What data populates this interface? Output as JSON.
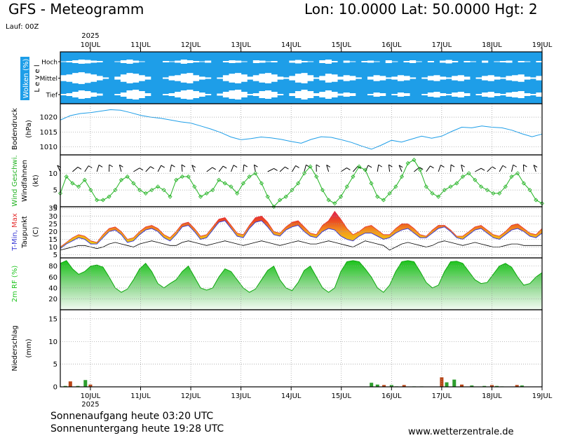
{
  "header": {
    "title": "GFS - Meteogramm",
    "coords": "Lon: 10.0000 Lat: 50.0000 Hgt: 2",
    "run": "Lauf: 00Z"
  },
  "footer": {
    "sunrise": "Sonnenaufgang heute 03:20 UTC",
    "sunset": "Sonnenuntergang heute 19:28 UTC",
    "site": "www.wetterzentrale.de"
  },
  "colors": {
    "cloud": "#1e9ee8",
    "pressure": "#1e9ee8",
    "wind": "#22b322",
    "tmin": "#3a3ad6",
    "tmax": "#e53030",
    "rh": "#1fc41f",
    "precip_conv": "#2e9e2e",
    "precip_large": "#b84414"
  },
  "chart_data": {
    "type": "line",
    "year_label": "2025",
    "x_ticks": [
      "10JUL",
      "11JUL",
      "12JUL",
      "13JUL",
      "14JUL",
      "15JUL",
      "16JUL",
      "17JUL",
      "18JUL",
      "19JUL"
    ],
    "x_range_days": [
      9.4,
      19.0
    ],
    "panels": [
      {
        "id": "clouds",
        "ylabel": "Wolken (%)",
        "ylabel2": "L e v e l",
        "levels": [
          "Hoch",
          "Mittel",
          "Tief"
        ],
        "series": [
          {
            "name": "Hoch",
            "values": [
              95,
              90,
              80,
              70,
              75,
              85,
              90,
              100,
              100,
              95,
              80,
              70,
              85,
              95,
              100,
              100,
              100,
              90,
              95,
              85,
              70,
              80,
              90,
              95,
              85,
              100,
              100,
              90,
              80,
              85,
              95,
              100,
              80,
              85,
              95,
              90,
              100,
              100,
              85,
              75,
              90,
              95,
              100,
              80,
              70,
              90,
              100,
              85,
              95,
              100,
              90,
              85,
              95,
              100,
              80,
              95,
              100,
              90,
              80,
              95,
              100,
              90,
              100,
              85,
              75,
              90,
              100,
              90,
              95,
              100,
              85,
              100,
              95,
              90,
              85,
              100,
              90,
              95,
              100,
              90
            ]
          },
          {
            "name": "Mittel",
            "values": [
              60,
              50,
              30,
              20,
              35,
              50,
              70,
              90,
              100,
              80,
              50,
              30,
              40,
              60,
              80,
              100,
              100,
              90,
              70,
              60,
              40,
              30,
              60,
              80,
              90,
              100,
              90,
              60,
              40,
              30,
              50,
              80,
              60,
              40,
              30,
              50,
              80,
              90,
              70,
              40,
              30,
              60,
              90,
              70,
              40,
              50,
              80,
              60,
              70,
              90,
              100,
              80,
              60,
              70,
              90,
              80,
              60,
              70,
              90,
              100,
              90,
              70,
              60,
              80,
              90,
              70,
              60,
              80,
              100,
              90,
              70,
              60,
              80,
              90,
              70,
              60,
              50,
              80,
              90,
              70
            ]
          },
          {
            "name": "Tief",
            "values": [
              90,
              80,
              60,
              40,
              50,
              70,
              85,
              100,
              100,
              90,
              70,
              40,
              30,
              50,
              80,
              100,
              100,
              90,
              80,
              60,
              40,
              30,
              50,
              70,
              90,
              100,
              85,
              60,
              40,
              30,
              60,
              90,
              80,
              50,
              40,
              60,
              90,
              100,
              80,
              50,
              30,
              50,
              80,
              60,
              40,
              60,
              85,
              70,
              80,
              100,
              100,
              90,
              70,
              80,
              100,
              90,
              70,
              80,
              100,
              100,
              90,
              70,
              60,
              80,
              90,
              70,
              60,
              80,
              100,
              90,
              70,
              60,
              80,
              90,
              70,
              60,
              50,
              80,
              90,
              70
            ]
          }
        ]
      },
      {
        "id": "pressure",
        "ylabel": "Bodendruck",
        "ylabel2": "(hPa)",
        "yticks": [
          1010,
          1015,
          1020
        ],
        "ylim": [
          1007.3,
          1024.5
        ],
        "series": [
          {
            "name": "Bodendruck",
            "x": [
              9.4,
              9.6,
              9.8,
              10.0,
              10.2,
              10.4,
              10.6,
              10.8,
              11.0,
              11.2,
              11.4,
              11.6,
              11.8,
              12.0,
              12.2,
              12.4,
              12.6,
              12.8,
              13.0,
              13.2,
              13.4,
              13.6,
              13.8,
              14.0,
              14.2,
              14.4,
              14.6,
              14.8,
              15.0,
              15.2,
              15.4,
              15.6,
              15.8,
              16.0,
              16.2,
              16.4,
              16.6,
              16.8,
              17.0,
              17.2,
              17.4,
              17.6,
              17.8,
              18.0,
              18.2,
              18.4,
              18.6,
              18.8,
              19.0
            ],
            "values": [
              1019.0,
              1020.5,
              1021.2,
              1021.5,
              1022.0,
              1022.5,
              1022.3,
              1021.5,
              1020.6,
              1020.0,
              1019.6,
              1019.0,
              1018.4,
              1018.0,
              1017.0,
              1016.0,
              1014.8,
              1013.3,
              1012.4,
              1012.8,
              1013.3,
              1013.0,
              1012.5,
              1011.8,
              1011.2,
              1012.5,
              1013.4,
              1013.2,
              1012.4,
              1011.5,
              1010.3,
              1009.2,
              1010.6,
              1012.2,
              1011.6,
              1012.6,
              1013.6,
              1012.9,
              1013.6,
              1015.2,
              1016.6,
              1016.4,
              1017.0,
              1016.6,
              1016.4,
              1015.6,
              1014.4,
              1013.4,
              1014.3
            ]
          }
        ]
      },
      {
        "id": "wind",
        "ylabel": "Wind Geschwi.",
        "ylabel2": "Windfahnen",
        "ylabel3": "(kt)",
        "yticks": [
          0,
          5,
          10
        ],
        "ylim": [
          0,
          15.5
        ],
        "series": [
          {
            "name": "Wind Geschwi.",
            "values": [
              4,
              9,
              7,
              6,
              8,
              5,
              2,
              2,
              3,
              5,
              8,
              9,
              7,
              5,
              4,
              5,
              6,
              5,
              3,
              8,
              9,
              9,
              6,
              3,
              4,
              5,
              8,
              7,
              6,
              4,
              7,
              9,
              10,
              7,
              3,
              0,
              2,
              3,
              5,
              7,
              10,
              12,
              9,
              5,
              2,
              1,
              3,
              6,
              9,
              12,
              11,
              7,
              3,
              2,
              4,
              6,
              9,
              13,
              14,
              11,
              6,
              4,
              3,
              5,
              6,
              7,
              9,
              10,
              8,
              6,
              5,
              4,
              4,
              6,
              9,
              10,
              7,
              5,
              2,
              1
            ]
          }
        ]
      },
      {
        "id": "temperature",
        "ylabel": "T-Min, Max",
        "ylabel2": "Taupunkt",
        "ylabel3": "(C)",
        "yticks": [
          5,
          10,
          15,
          20,
          25,
          30,
          35
        ],
        "ylim": [
          3,
          36
        ],
        "series": [
          {
            "name": "T-Min",
            "values": [
              9,
              12,
              14,
              16,
              15,
              12,
              12,
              16,
              20,
              21,
              18,
              13,
              14,
              18,
              21,
              22,
              20,
              16,
              14,
              18,
              23,
              24,
              20,
              15,
              16,
              21,
              26,
              27,
              22,
              17,
              16,
              22,
              26,
              27,
              23,
              18,
              17,
              21,
              23,
              24,
              20,
              17,
              16,
              20,
              22,
              21,
              17,
              15,
              14,
              17,
              19,
              19,
              17,
              15,
              16,
              19,
              21,
              22,
              19,
              16,
              16,
              19,
              22,
              23,
              20,
              16,
              15,
              18,
              21,
              22,
              19,
              16,
              15,
              18,
              21,
              22,
              20,
              17,
              16,
              19
            ]
          },
          {
            "name": "T-Max",
            "values": [
              10,
              13,
              16,
              18,
              17,
              14,
              13,
              18,
              22,
              23,
              20,
              15,
              16,
              20,
              23,
              24,
              22,
              18,
              16,
              20,
              25,
              26,
              22,
              17,
              18,
              23,
              28,
              29,
              24,
              19,
              18,
              24,
              29,
              30,
              26,
              20,
              19,
              23,
              26,
              27,
              23,
              19,
              18,
              24,
              27,
              33,
              28,
              22,
              18,
              20,
              23,
              24,
              21,
              18,
              18,
              22,
              25,
              25,
              22,
              18,
              17,
              21,
              24,
              24,
              21,
              17,
              17,
              20,
              23,
              24,
              21,
              18,
              17,
              20,
              24,
              25,
              22,
              19,
              18,
              22
            ]
          },
          {
            "name": "Taupunkt",
            "values": [
              8,
              9,
              10,
              11,
              11,
              10,
              9,
              10,
              12,
              13,
              12,
              11,
              10,
              12,
              13,
              14,
              13,
              12,
              11,
              11,
              13,
              14,
              13,
              12,
              11,
              12,
              13,
              14,
              13,
              12,
              11,
              12,
              13,
              14,
              13,
              12,
              11,
              12,
              13,
              14,
              13,
              12,
              12,
              13,
              14,
              13,
              12,
              11,
              10,
              12,
              14,
              13,
              12,
              11,
              8,
              10,
              12,
              13,
              12,
              11,
              10,
              11,
              13,
              14,
              13,
              12,
              11,
              12,
              13,
              12,
              11,
              10,
              10,
              11,
              12,
              12,
              11,
              11,
              11,
              11
            ]
          }
        ]
      },
      {
        "id": "humidity",
        "ylabel": "2m RF (%)",
        "yticks": [
          20,
          40,
          60,
          80
        ],
        "ylim": [
          0,
          95
        ],
        "series": [
          {
            "name": "2m RF",
            "values": [
              85,
              90,
              75,
              65,
              70,
              80,
              82,
              78,
              60,
              40,
              32,
              38,
              55,
              75,
              85,
              70,
              48,
              40,
              48,
              55,
              70,
              80,
              60,
              40,
              36,
              40,
              60,
              75,
              70,
              55,
              40,
              32,
              38,
              55,
              72,
              80,
              55,
              40,
              35,
              50,
              72,
              80,
              60,
              40,
              32,
              40,
              70,
              88,
              90,
              88,
              75,
              60,
              40,
              32,
              45,
              70,
              88,
              90,
              88,
              70,
              50,
              40,
              45,
              70,
              88,
              89,
              85,
              70,
              55,
              48,
              50,
              65,
              80,
              85,
              78,
              60,
              45,
              48,
              60,
              68
            ]
          }
        ]
      },
      {
        "id": "precip",
        "ylabel": "Niederschlag",
        "ylabel2": "(mm)",
        "yticks": [
          0,
          5,
          10,
          15
        ],
        "ylim": [
          0,
          17
        ],
        "series": [
          {
            "name": "Niederschlag",
            "x": [
              9.5,
              9.6,
              9.75,
              9.9,
              10.0,
              15.6,
              15.72,
              15.85,
              16.0,
              16.1,
              16.25,
              16.45,
              16.6,
              17.0,
              17.1,
              17.25,
              17.4,
              17.6,
              17.85,
              18.0,
              18.1,
              18.2,
              18.5,
              18.6
            ],
            "values": [
              0.2,
              1.2,
              0.2,
              1.5,
              0.5,
              0.9,
              0.5,
              0.4,
              0.4,
              0.1,
              0.4,
              0.1,
              0.1,
              2.1,
              1.0,
              1.6,
              0.5,
              0.3,
              0.2,
              0.4,
              0.2,
              0.1,
              0.4,
              0.3
            ]
          }
        ]
      }
    ]
  }
}
